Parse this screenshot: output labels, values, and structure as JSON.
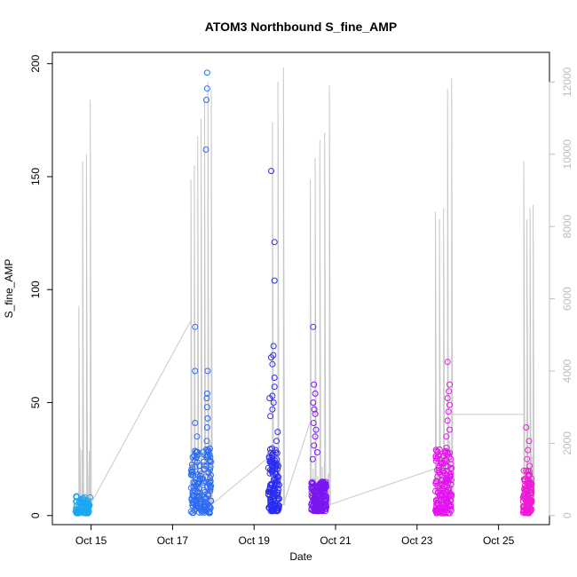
{
  "chart_data": {
    "type": "scatter",
    "title": "ATOM3 Northbound S_fine_AMP",
    "xlabel": "Date",
    "ylabel": "S_fine_AMP",
    "x_unit": "days",
    "x_tick_labels": [
      {
        "day": 15,
        "label": "Oct 15"
      },
      {
        "day": 17,
        "label": "Oct 17"
      },
      {
        "day": 19,
        "label": "Oct 19"
      },
      {
        "day": 21,
        "label": "Oct 21"
      },
      {
        "day": 23,
        "label": "Oct 23"
      },
      {
        "day": 25,
        "label": "Oct 25"
      }
    ],
    "xlim": [
      14.05,
      26.25
    ],
    "ylim": [
      -4,
      205
    ],
    "y_ticks": [
      0,
      50,
      100,
      150,
      200
    ],
    "y2_label": "",
    "y2_ticks": [
      0,
      2000,
      4000,
      6000,
      8000,
      10000,
      12000
    ],
    "y2_lim": [
      -250,
      12820
    ],
    "grid": false,
    "clusters": [
      {
        "color": "#1ea7f0",
        "x_range": [
          14.62,
          14.98
        ],
        "y_range": [
          1,
          9
        ],
        "n_points": 90,
        "outliers": []
      },
      {
        "color": "#2d6cf2",
        "x_range": [
          17.45,
          17.95
        ],
        "y_range": [
          1,
          30
        ],
        "n_points": 160,
        "outliers": [
          {
            "x": 17.55,
            "y": 83.5
          },
          {
            "x": 17.55,
            "y": 64
          },
          {
            "x": 17.55,
            "y": 41
          },
          {
            "x": 17.6,
            "y": 35
          },
          {
            "x": 17.85,
            "y": 196
          },
          {
            "x": 17.85,
            "y": 189
          },
          {
            "x": 17.83,
            "y": 184
          },
          {
            "x": 17.82,
            "y": 162
          },
          {
            "x": 17.86,
            "y": 64
          },
          {
            "x": 17.85,
            "y": 54
          },
          {
            "x": 17.84,
            "y": 52
          },
          {
            "x": 17.85,
            "y": 48
          },
          {
            "x": 17.86,
            "y": 43
          },
          {
            "x": 17.85,
            "y": 39
          },
          {
            "x": 17.84,
            "y": 33
          },
          {
            "x": 17.86,
            "y": 29
          }
        ]
      },
      {
        "color": "#2a2df0",
        "x_range": [
          19.35,
          19.62
        ],
        "y_range": [
          2,
          30
        ],
        "n_points": 140,
        "outliers": [
          {
            "x": 19.42,
            "y": 152.5
          },
          {
            "x": 19.5,
            "y": 121
          },
          {
            "x": 19.5,
            "y": 104
          },
          {
            "x": 19.48,
            "y": 75
          },
          {
            "x": 19.47,
            "y": 71
          },
          {
            "x": 19.42,
            "y": 70
          },
          {
            "x": 19.45,
            "y": 67
          },
          {
            "x": 19.5,
            "y": 61
          },
          {
            "x": 19.5,
            "y": 57
          },
          {
            "x": 19.45,
            "y": 53
          },
          {
            "x": 19.38,
            "y": 52
          },
          {
            "x": 19.48,
            "y": 50
          },
          {
            "x": 19.45,
            "y": 47
          },
          {
            "x": 19.4,
            "y": 44
          },
          {
            "x": 19.58,
            "y": 37
          },
          {
            "x": 19.55,
            "y": 33
          }
        ]
      },
      {
        "color": "#7b16f0",
        "x_range": [
          20.4,
          20.78
        ],
        "y_range": [
          2,
          15
        ],
        "n_points": 170,
        "outliers": [
          {
            "x": 20.45,
            "y": 83.5
          },
          {
            "x": 20.47,
            "y": 58
          },
          {
            "x": 20.5,
            "y": 54
          },
          {
            "x": 20.45,
            "y": 50
          },
          {
            "x": 20.48,
            "y": 47
          },
          {
            "x": 20.5,
            "y": 45
          },
          {
            "x": 20.46,
            "y": 41
          },
          {
            "x": 20.52,
            "y": 38
          },
          {
            "x": 20.5,
            "y": 35
          },
          {
            "x": 20.47,
            "y": 31
          },
          {
            "x": 20.55,
            "y": 28
          },
          {
            "x": 20.44,
            "y": 25
          }
        ]
      },
      {
        "color": "#e413ef",
        "x_range": [
          23.45,
          23.85
        ],
        "y_range": [
          1,
          30
        ],
        "n_points": 170,
        "outliers": [
          {
            "x": 23.75,
            "y": 68
          },
          {
            "x": 23.8,
            "y": 58
          },
          {
            "x": 23.78,
            "y": 55
          },
          {
            "x": 23.75,
            "y": 52
          },
          {
            "x": 23.8,
            "y": 49
          },
          {
            "x": 23.77,
            "y": 46
          },
          {
            "x": 23.75,
            "y": 42
          },
          {
            "x": 23.8,
            "y": 38
          },
          {
            "x": 23.72,
            "y": 35
          }
        ]
      },
      {
        "color": "#f01ad6",
        "x_range": [
          25.6,
          25.82
        ],
        "y_range": [
          1,
          20
        ],
        "n_points": 110,
        "outliers": [
          {
            "x": 25.68,
            "y": 39
          },
          {
            "x": 25.75,
            "y": 33
          },
          {
            "x": 25.72,
            "y": 29
          },
          {
            "x": 25.7,
            "y": 25
          },
          {
            "x": 25.76,
            "y": 22
          }
        ]
      }
    ],
    "secondary_series": {
      "color": "#c8c8c8",
      "axis": "right",
      "bursts": [
        {
          "x_range": [
            14.7,
            14.98
          ],
          "peaks": [
            5800,
            9800,
            10000,
            11500
          ],
          "base": 300
        },
        {
          "x_range": [
            17.45,
            17.95
          ],
          "peaks": [
            9300,
            9700,
            10500,
            11000,
            11500,
            12000,
            11800
          ],
          "base": 300
        },
        {
          "x_range": [
            19.45,
            19.72
          ],
          "peaks": [
            10900,
            12000,
            12400
          ],
          "base": 300
        },
        {
          "x_range": [
            20.38,
            20.85
          ],
          "peaks": [
            9300,
            9900,
            10400,
            10600,
            11900
          ],
          "base": 300
        },
        {
          "x_range": [
            23.45,
            23.85
          ],
          "peaks": [
            8400,
            8200,
            8500,
            11800,
            12100
          ],
          "base": 300
        },
        {
          "x_range": [
            25.62,
            25.85
          ],
          "peaks": [
            9800,
            8200,
            8500,
            8600
          ],
          "base": 300
        }
      ],
      "connectors": [
        {
          "x": 14.98,
          "y": 300
        },
        {
          "x": 17.45,
          "y": 5400
        },
        {
          "x": 17.95,
          "y": 300
        },
        {
          "x": 19.45,
          "y": 1700
        },
        {
          "x": 19.72,
          "y": 300
        },
        {
          "x": 20.38,
          "y": 2600
        },
        {
          "x": 20.85,
          "y": 300
        },
        {
          "x": 23.45,
          "y": 1300
        },
        {
          "x": 23.85,
          "y": 2800
        },
        {
          "x": 25.62,
          "y": 2800
        }
      ]
    }
  }
}
